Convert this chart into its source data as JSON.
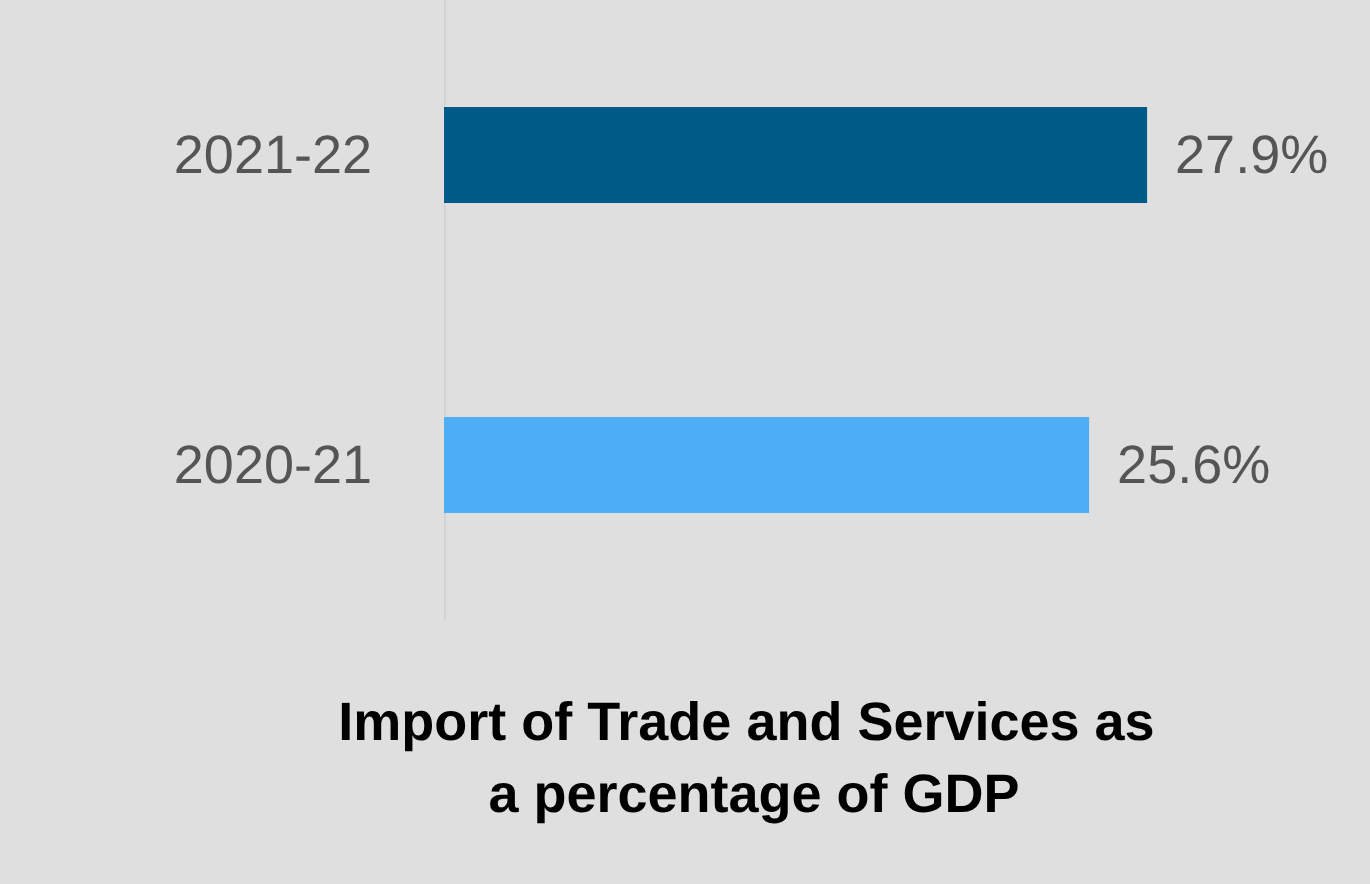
{
  "chart_data": {
    "type": "bar",
    "orientation": "horizontal",
    "title": "Import of Trade and Services as a percentage of GDP",
    "categories": [
      "2021-22",
      "2020-21"
    ],
    "values": [
      27.9,
      25.6
    ],
    "colors": [
      "#005a87",
      "#4daef5"
    ],
    "value_labels": [
      "27.9%",
      "25.6%"
    ]
  }
}
